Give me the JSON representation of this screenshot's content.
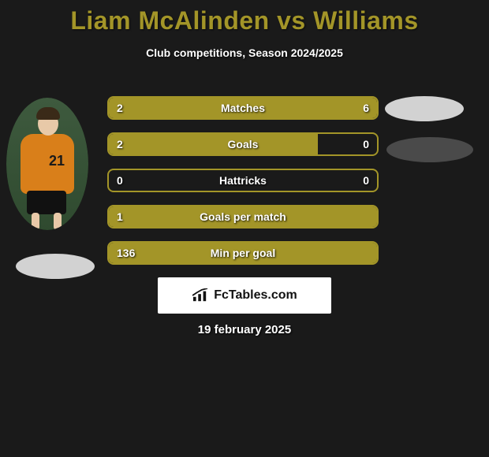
{
  "header": {
    "title": "Liam McAlinden vs Williams",
    "subtitle": "Club competitions, Season 2024/2025",
    "title_color": "#a39528"
  },
  "player_left": {
    "name": "Liam McAlinden",
    "shirt_number": "21",
    "shirt_color": "#d97f1a"
  },
  "stats": {
    "accent_color": "#a39528",
    "rows": [
      {
        "label": "Matches",
        "left_value": "2",
        "right_value": "6",
        "left_fill_pct": 25,
        "right_fill_pct": 75
      },
      {
        "label": "Goals",
        "left_value": "2",
        "right_value": "0",
        "left_fill_pct": 78,
        "right_fill_pct": 0
      },
      {
        "label": "Hattricks",
        "left_value": "0",
        "right_value": "0",
        "left_fill_pct": 0,
        "right_fill_pct": 0
      },
      {
        "label": "Goals per match",
        "left_value": "1",
        "right_value": "",
        "left_fill_pct": 100,
        "right_fill_pct": 0
      },
      {
        "label": "Min per goal",
        "left_value": "136",
        "right_value": "",
        "left_fill_pct": 100,
        "right_fill_pct": 0
      }
    ]
  },
  "footer": {
    "logo_text": "FcTables.com",
    "date": "19 february 2025"
  },
  "palette": {
    "background": "#1a1a1a",
    "text": "#ffffff",
    "ellipse_light": "#d2d2d2",
    "ellipse_dark": "#4a4a4a"
  }
}
